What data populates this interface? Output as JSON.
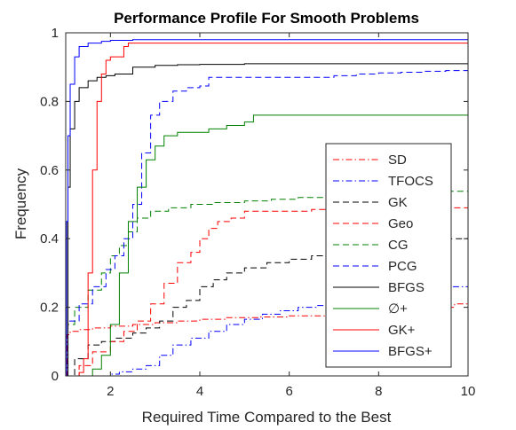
{
  "chart_data": {
    "type": "line",
    "title": "Performance Profile For Smooth Problems",
    "xlabel": "Required Time Compared to the Best",
    "ylabel": "Frequency",
    "xlim": [
      1,
      10
    ],
    "ylim": [
      0,
      1
    ],
    "xticks": [
      2,
      4,
      6,
      8,
      10
    ],
    "yticks": [
      0,
      0.2,
      0.4,
      0.6,
      0.8,
      1
    ],
    "xtick_labels": [
      "2",
      "4",
      "6",
      "8",
      "10"
    ],
    "ytick_labels": [
      "0",
      "0.2",
      "0.4",
      "0.6",
      "0.8",
      "1"
    ],
    "grid": false,
    "legend_position": "right-center",
    "step": true,
    "series": [
      {
        "name": "SD",
        "color": "#ff0000",
        "dash": "dashdot",
        "points": [
          [
            1.0,
            0.0
          ],
          [
            1.03,
            0.12
          ],
          [
            1.1,
            0.13
          ],
          [
            1.3,
            0.135
          ],
          [
            1.6,
            0.14
          ],
          [
            2.0,
            0.145
          ],
          [
            2.5,
            0.15
          ],
          [
            3.0,
            0.155
          ],
          [
            3.5,
            0.16
          ],
          [
            4.0,
            0.165
          ],
          [
            4.6,
            0.17
          ],
          [
            5.3,
            0.172
          ],
          [
            6.0,
            0.175
          ],
          [
            6.8,
            0.178
          ],
          [
            7.5,
            0.182
          ],
          [
            8.2,
            0.188
          ],
          [
            8.8,
            0.193
          ],
          [
            9.3,
            0.2
          ],
          [
            9.7,
            0.21
          ],
          [
            10.0,
            0.22
          ]
        ]
      },
      {
        "name": "TFOCS",
        "color": "#0000ff",
        "dash": "dashdot",
        "points": [
          [
            1.0,
            0.0
          ],
          [
            1.8,
            0.0
          ],
          [
            2.0,
            0.005
          ],
          [
            2.2,
            0.012
          ],
          [
            2.5,
            0.02
          ],
          [
            2.8,
            0.03
          ],
          [
            3.1,
            0.06
          ],
          [
            3.4,
            0.09
          ],
          [
            3.8,
            0.11
          ],
          [
            4.2,
            0.13
          ],
          [
            4.6,
            0.15
          ],
          [
            5.0,
            0.165
          ],
          [
            5.4,
            0.18
          ],
          [
            5.8,
            0.19
          ],
          [
            6.2,
            0.2
          ],
          [
            6.6,
            0.205
          ],
          [
            7.0,
            0.215
          ],
          [
            7.5,
            0.22
          ],
          [
            8.0,
            0.23
          ],
          [
            8.5,
            0.24
          ],
          [
            9.0,
            0.25
          ],
          [
            9.5,
            0.26
          ],
          [
            10.0,
            0.27
          ]
        ]
      },
      {
        "name": "GK",
        "color": "#000000",
        "dash": "dash",
        "points": [
          [
            1.0,
            0.0
          ],
          [
            1.2,
            0.05
          ],
          [
            1.5,
            0.09
          ],
          [
            1.8,
            0.1
          ],
          [
            2.1,
            0.11
          ],
          [
            2.5,
            0.125
          ],
          [
            2.8,
            0.14
          ],
          [
            3.1,
            0.16
          ],
          [
            3.4,
            0.2
          ],
          [
            3.7,
            0.22
          ],
          [
            4.0,
            0.26
          ],
          [
            4.3,
            0.28
          ],
          [
            4.6,
            0.3
          ],
          [
            5.0,
            0.315
          ],
          [
            5.5,
            0.33
          ],
          [
            6.0,
            0.34
          ],
          [
            6.5,
            0.35
          ],
          [
            7.0,
            0.36
          ],
          [
            7.5,
            0.37
          ],
          [
            8.0,
            0.38
          ],
          [
            8.5,
            0.39
          ],
          [
            9.0,
            0.395
          ],
          [
            9.4,
            0.4
          ],
          [
            10.0,
            0.4
          ]
        ]
      },
      {
        "name": "Geo",
        "color": "#ff0000",
        "dash": "dash",
        "points": [
          [
            1.0,
            0.0
          ],
          [
            1.3,
            0.03
          ],
          [
            1.6,
            0.07
          ],
          [
            2.0,
            0.1
          ],
          [
            2.3,
            0.13
          ],
          [
            2.6,
            0.16
          ],
          [
            2.9,
            0.21
          ],
          [
            3.2,
            0.27
          ],
          [
            3.5,
            0.33
          ],
          [
            3.8,
            0.36
          ],
          [
            4.0,
            0.4
          ],
          [
            4.2,
            0.43
          ],
          [
            4.4,
            0.45
          ],
          [
            4.7,
            0.46
          ],
          [
            5.0,
            0.48
          ],
          [
            5.5,
            0.48
          ],
          [
            6.0,
            0.48
          ],
          [
            6.5,
            0.485
          ],
          [
            7.0,
            0.487
          ],
          [
            8.0,
            0.49
          ],
          [
            9.0,
            0.49
          ],
          [
            10.0,
            0.49
          ]
        ]
      },
      {
        "name": "CG",
        "color": "#008000",
        "dash": "dash",
        "points": [
          [
            1.0,
            0.0
          ],
          [
            1.05,
            0.15
          ],
          [
            1.2,
            0.2
          ],
          [
            1.5,
            0.25
          ],
          [
            1.8,
            0.3
          ],
          [
            2.0,
            0.35
          ],
          [
            2.2,
            0.38
          ],
          [
            2.4,
            0.42
          ],
          [
            2.6,
            0.46
          ],
          [
            2.9,
            0.48
          ],
          [
            3.3,
            0.49
          ],
          [
            3.8,
            0.5
          ],
          [
            4.3,
            0.505
          ],
          [
            5.0,
            0.51
          ],
          [
            5.6,
            0.515
          ],
          [
            6.2,
            0.52
          ],
          [
            7.0,
            0.525
          ],
          [
            7.8,
            0.53
          ],
          [
            8.6,
            0.535
          ],
          [
            9.3,
            0.538
          ],
          [
            10.0,
            0.54
          ]
        ]
      },
      {
        "name": "PCG",
        "color": "#0000ff",
        "dash": "dash",
        "points": [
          [
            1.0,
            0.0
          ],
          [
            1.05,
            0.16
          ],
          [
            1.3,
            0.21
          ],
          [
            1.6,
            0.26
          ],
          [
            1.9,
            0.31
          ],
          [
            2.1,
            0.35
          ],
          [
            2.3,
            0.4
          ],
          [
            2.5,
            0.5
          ],
          [
            2.7,
            0.65
          ],
          [
            2.9,
            0.76
          ],
          [
            3.1,
            0.8
          ],
          [
            3.4,
            0.83
          ],
          [
            3.7,
            0.84
          ],
          [
            4.0,
            0.845
          ],
          [
            4.2,
            0.87
          ],
          [
            4.6,
            0.87
          ],
          [
            5.0,
            0.87
          ],
          [
            5.5,
            0.87
          ],
          [
            6.0,
            0.87
          ],
          [
            6.5,
            0.87
          ],
          [
            7.0,
            0.875
          ],
          [
            7.5,
            0.88
          ],
          [
            8.0,
            0.883
          ],
          [
            8.5,
            0.885
          ],
          [
            9.0,
            0.888
          ],
          [
            9.5,
            0.89
          ],
          [
            10.0,
            0.89
          ]
        ]
      },
      {
        "name": "BFGS",
        "color": "#000000",
        "dash": "solid",
        "points": [
          [
            1.0,
            0.0
          ],
          [
            1.05,
            0.55
          ],
          [
            1.1,
            0.72
          ],
          [
            1.2,
            0.8
          ],
          [
            1.3,
            0.84
          ],
          [
            1.5,
            0.86
          ],
          [
            1.7,
            0.87
          ],
          [
            1.9,
            0.875
          ],
          [
            2.1,
            0.88
          ],
          [
            2.5,
            0.9
          ],
          [
            3.0,
            0.905
          ],
          [
            3.5,
            0.907
          ],
          [
            4.0,
            0.908
          ],
          [
            5.0,
            0.91
          ],
          [
            6.0,
            0.91
          ],
          [
            7.0,
            0.91
          ],
          [
            8.0,
            0.91
          ],
          [
            9.0,
            0.91
          ],
          [
            10.0,
            0.91
          ]
        ]
      },
      {
        "name": "∅+",
        "color": "#008000",
        "dash": "solid",
        "points": [
          [
            1.0,
            0.0
          ],
          [
            1.4,
            0.0
          ],
          [
            1.6,
            0.02
          ],
          [
            1.8,
            0.06
          ],
          [
            2.0,
            0.15
          ],
          [
            2.2,
            0.3
          ],
          [
            2.4,
            0.45
          ],
          [
            2.6,
            0.55
          ],
          [
            2.8,
            0.63
          ],
          [
            3.0,
            0.67
          ],
          [
            3.2,
            0.7
          ],
          [
            3.5,
            0.71
          ],
          [
            3.8,
            0.71
          ],
          [
            4.2,
            0.72
          ],
          [
            4.6,
            0.73
          ],
          [
            5.0,
            0.74
          ],
          [
            5.2,
            0.76
          ],
          [
            6.0,
            0.76
          ],
          [
            7.0,
            0.76
          ],
          [
            8.0,
            0.76
          ],
          [
            9.0,
            0.76
          ],
          [
            10.0,
            0.76
          ]
        ]
      },
      {
        "name": "GK+",
        "color": "#ff0000",
        "dash": "solid",
        "points": [
          [
            1.0,
            0.0
          ],
          [
            1.3,
            0.01
          ],
          [
            1.4,
            0.05
          ],
          [
            1.5,
            0.3
          ],
          [
            1.6,
            0.6
          ],
          [
            1.7,
            0.8
          ],
          [
            1.8,
            0.88
          ],
          [
            1.9,
            0.92
          ],
          [
            2.0,
            0.93
          ],
          [
            2.2,
            0.93
          ],
          [
            2.3,
            0.96
          ],
          [
            2.4,
            0.97
          ],
          [
            3.0,
            0.97
          ],
          [
            4.0,
            0.97
          ],
          [
            5.0,
            0.97
          ],
          [
            6.0,
            0.97
          ],
          [
            7.0,
            0.97
          ],
          [
            8.0,
            0.97
          ],
          [
            9.0,
            0.97
          ],
          [
            10.0,
            0.97
          ]
        ]
      },
      {
        "name": "BFGS+",
        "color": "#0000ff",
        "dash": "solid",
        "points": [
          [
            1.0,
            0.0
          ],
          [
            1.02,
            0.45
          ],
          [
            1.05,
            0.7
          ],
          [
            1.1,
            0.85
          ],
          [
            1.2,
            0.93
          ],
          [
            1.3,
            0.96
          ],
          [
            1.5,
            0.97
          ],
          [
            1.8,
            0.975
          ],
          [
            2.0,
            0.978
          ],
          [
            2.5,
            0.98
          ],
          [
            3.0,
            0.98
          ],
          [
            4.0,
            0.98
          ],
          [
            5.0,
            0.98
          ],
          [
            6.0,
            0.98
          ],
          [
            7.0,
            0.98
          ],
          [
            8.0,
            0.98
          ],
          [
            9.0,
            0.98
          ],
          [
            10.0,
            0.98
          ]
        ]
      }
    ]
  }
}
